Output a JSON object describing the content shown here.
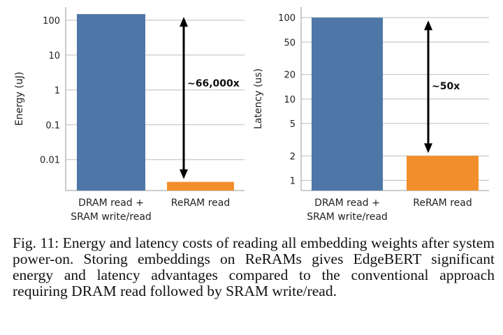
{
  "chart_data": [
    {
      "type": "bar",
      "yscale": "log",
      "ylabel": "Energy (uJ)",
      "categories": [
        "DRAM read +\nSRAM write/read",
        "ReRAM read"
      ],
      "values": [
        150,
        0.0023
      ],
      "colors": [
        "#4e77a8",
        "#f28e2b"
      ],
      "ylim": [
        0.0013,
        240
      ],
      "yticks": [
        {
          "value": 100,
          "label": "100"
        },
        {
          "value": 10,
          "label": "10"
        },
        {
          "value": 1,
          "label": "1"
        },
        {
          "value": 0.1,
          "label": "0.1"
        },
        {
          "value": 0.01,
          "label": "0.01"
        }
      ],
      "annotation": "~66,000x",
      "grid": true
    },
    {
      "type": "bar",
      "yscale": "log",
      "ylabel": "Latency (us)",
      "categories": [
        "DRAM read +\nSRAM write/read",
        "ReRAM read"
      ],
      "values": [
        100,
        2
      ],
      "colors": [
        "#4e77a8",
        "#f28e2b"
      ],
      "ylim": [
        0.75,
        135
      ],
      "yticks": [
        {
          "value": 100,
          "label": "100"
        },
        {
          "value": 50,
          "label": "50"
        },
        {
          "value": 20,
          "label": "20"
        },
        {
          "value": 10,
          "label": "10"
        },
        {
          "value": 5,
          "label": "5"
        },
        {
          "value": 2,
          "label": "2"
        },
        {
          "value": 1,
          "label": "1"
        }
      ],
      "annotation": "~50x",
      "grid": true
    }
  ],
  "caption": "Fig. 11: Energy and latency costs of reading all embedding weights after system power-on. Storing embeddings on ReRAMs gives EdgeBERT significant energy and latency advantages compared to the conventional approach requiring DRAM read followed by SRAM write/read."
}
